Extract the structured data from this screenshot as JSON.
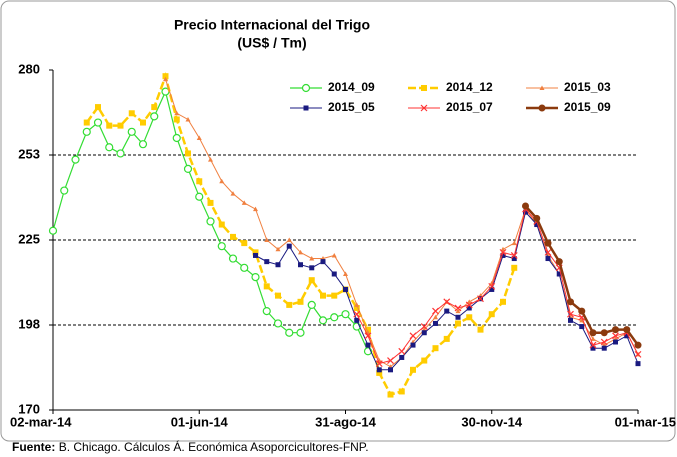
{
  "chart_data": {
    "type": "line",
    "title": "Precio Internacional del Trigo",
    "subtitle": "(US$ / Tm)",
    "source_label": "Fuente:",
    "source": "B. Chicago. Cálculos Á. Económica Asoporcicultores-FNP.",
    "categories": [
      "02-mar-14",
      null,
      null,
      null,
      null,
      null,
      null,
      null,
      null,
      null,
      null,
      null,
      null,
      "01-jun-14",
      null,
      null,
      null,
      null,
      null,
      null,
      null,
      null,
      null,
      null,
      null,
      null,
      "31-ago-14",
      null,
      null,
      null,
      null,
      null,
      null,
      null,
      null,
      null,
      null,
      null,
      null,
      "30-nov-14",
      null,
      null,
      null,
      null,
      null,
      null,
      null,
      null,
      null,
      null,
      null,
      null,
      "01-mar-15"
    ],
    "ylim": [
      170,
      280
    ],
    "yticks": [
      170,
      {
        "value": 197.5,
        "label": "198"
      },
      225,
      {
        "value": 252.5,
        "label": "253"
      },
      280
    ],
    "grid": true,
    "legend": "top-right",
    "series": [
      {
        "name": "2014_09",
        "color": "#33dd33",
        "marker": "circle-open",
        "width": 1.2,
        "dash": false,
        "values": [
          228,
          241,
          251,
          260,
          263,
          255,
          253,
          260,
          256,
          265,
          273,
          258,
          248,
          239,
          231,
          223,
          219,
          216,
          213,
          202,
          198,
          195,
          195,
          204,
          199,
          200,
          201,
          197,
          189,
          null,
          null,
          null,
          null,
          null,
          null,
          null,
          null,
          null,
          null,
          null,
          null,
          null,
          null,
          null,
          null,
          null,
          null,
          null,
          null,
          null,
          null,
          null,
          null
        ]
      },
      {
        "name": "2014_12",
        "color": "#ffcc00",
        "marker": "square",
        "width": 2.5,
        "dash": true,
        "values": [
          null,
          null,
          null,
          263,
          268,
          262,
          262,
          266,
          263,
          268,
          278,
          264,
          253,
          244,
          237,
          230,
          226,
          224,
          221,
          210,
          207,
          204,
          205,
          212,
          207,
          207,
          209,
          203,
          196,
          182,
          175,
          176,
          183,
          186,
          190,
          193,
          198,
          200,
          196,
          201,
          205,
          216,
          null,
          null,
          null,
          null,
          null,
          null,
          null,
          null,
          null,
          null,
          null
        ]
      },
      {
        "name": "2015_03",
        "color": "#f08040",
        "marker": "triangle",
        "width": 1,
        "dash": false,
        "values": [
          null,
          null,
          null,
          null,
          null,
          null,
          null,
          null,
          null,
          null,
          277,
          266,
          264,
          258,
          251,
          244,
          240,
          237,
          235,
          225,
          222,
          225,
          221,
          219,
          219,
          220,
          214,
          204,
          195,
          186,
          184,
          187,
          192,
          196,
          200,
          205,
          202,
          205,
          207,
          211,
          222,
          224,
          235,
          230,
          220,
          214,
          200,
          199,
          193,
          191,
          193,
          195,
          188
        ]
      },
      {
        "name": "2015_05",
        "color": "#1a1a80",
        "marker": "square-filled",
        "width": 1,
        "dash": false,
        "values": [
          null,
          null,
          null,
          null,
          null,
          null,
          null,
          null,
          null,
          null,
          null,
          null,
          null,
          null,
          null,
          null,
          null,
          null,
          220,
          218,
          217,
          223,
          217,
          216,
          218,
          214,
          209,
          199,
          191,
          183,
          183,
          187,
          191,
          195,
          198,
          202,
          200,
          203,
          206,
          209,
          220,
          219,
          234,
          230,
          219,
          214,
          199,
          197,
          190,
          190,
          192,
          194,
          185
        ]
      },
      {
        "name": "2015_07",
        "color": "#ff3333",
        "marker": "x",
        "width": 1,
        "dash": false,
        "values": [
          null,
          null,
          null,
          null,
          null,
          null,
          null,
          null,
          null,
          null,
          null,
          null,
          null,
          null,
          null,
          null,
          null,
          null,
          null,
          null,
          null,
          null,
          null,
          null,
          null,
          null,
          null,
          201,
          194,
          185,
          186,
          189,
          194,
          197,
          202,
          205,
          203,
          204,
          206,
          210,
          221,
          220,
          235,
          231,
          221,
          216,
          201,
          200,
          191,
          192,
          194,
          195,
          188
        ]
      },
      {
        "name": "2015_09",
        "color": "#8b3a0e",
        "marker": "circle",
        "width": 2.5,
        "dash": false,
        "values": [
          null,
          null,
          null,
          null,
          null,
          null,
          null,
          null,
          null,
          null,
          null,
          null,
          null,
          null,
          null,
          null,
          null,
          null,
          null,
          null,
          null,
          null,
          null,
          null,
          null,
          null,
          null,
          null,
          null,
          null,
          null,
          null,
          null,
          null,
          null,
          null,
          null,
          null,
          null,
          null,
          null,
          null,
          236,
          232,
          224,
          218,
          205,
          202,
          195,
          195,
          196,
          196,
          191
        ]
      }
    ]
  }
}
